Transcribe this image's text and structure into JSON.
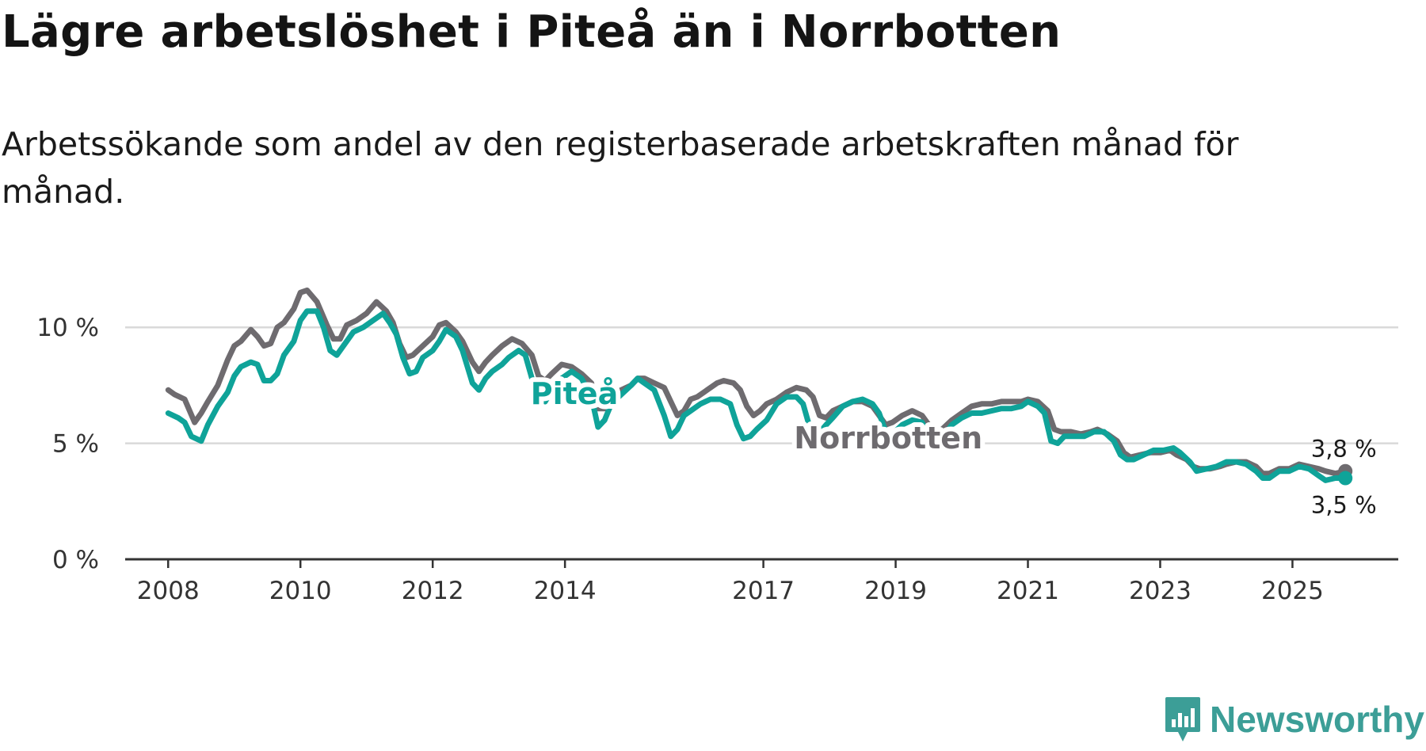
{
  "title": "Lägre arbetslöshet i Piteå än i Norrbotten",
  "subtitle": "Arbetssökande som andel av den registerbaserade arbetskraften månad för månad.",
  "brand": {
    "name": "Newsworthy",
    "icon": "newsworthy-logo-icon"
  },
  "colors": {
    "pitea": "#0fa399",
    "norrbotten": "#6e6b6f",
    "grid": "#d9d9d9",
    "axis": "#333333",
    "brand": "#3c9e97"
  },
  "chart_data": {
    "type": "line",
    "title": "Lägre arbetslöshet i Piteå än i Norrbotten",
    "xlabel": "",
    "ylabel": "",
    "x_ticks": [
      2008,
      2010,
      2012,
      2014,
      2017,
      2019,
      2021,
      2023,
      2025
    ],
    "x_tick_labels": [
      "2008",
      "2010",
      "2012",
      "2014",
      "2017",
      "2019",
      "2021",
      "2023",
      "2025"
    ],
    "y_ticks": [
      0,
      5,
      10
    ],
    "y_tick_labels": [
      "0 %",
      "5 %",
      "10 %"
    ],
    "xlim": [
      2007.35,
      2026.6
    ],
    "ylim": [
      0,
      12.5
    ],
    "grid": true,
    "series": [
      {
        "name": "Norrbotten",
        "label": "Norrbotten",
        "color": "#6e6b6f",
        "end_label": "3,8 %",
        "points": [
          [
            2008.0,
            7.3
          ],
          [
            2008.1,
            7.1
          ],
          [
            2008.25,
            6.9
          ],
          [
            2008.4,
            5.9
          ],
          [
            2008.5,
            6.3
          ],
          [
            2008.6,
            6.8
          ],
          [
            2008.75,
            7.5
          ],
          [
            2008.9,
            8.6
          ],
          [
            2009.0,
            9.2
          ],
          [
            2009.1,
            9.4
          ],
          [
            2009.25,
            9.9
          ],
          [
            2009.35,
            9.6
          ],
          [
            2009.45,
            9.2
          ],
          [
            2009.55,
            9.3
          ],
          [
            2009.65,
            10.0
          ],
          [
            2009.75,
            10.2
          ],
          [
            2009.9,
            10.8
          ],
          [
            2010.0,
            11.5
          ],
          [
            2010.1,
            11.6
          ],
          [
            2010.25,
            11.1
          ],
          [
            2010.4,
            10.1
          ],
          [
            2010.5,
            9.5
          ],
          [
            2010.6,
            9.5
          ],
          [
            2010.7,
            10.1
          ],
          [
            2010.85,
            10.3
          ],
          [
            2011.0,
            10.6
          ],
          [
            2011.15,
            11.1
          ],
          [
            2011.3,
            10.7
          ],
          [
            2011.4,
            10.2
          ],
          [
            2011.5,
            9.3
          ],
          [
            2011.6,
            8.7
          ],
          [
            2011.7,
            8.8
          ],
          [
            2011.85,
            9.2
          ],
          [
            2012.0,
            9.6
          ],
          [
            2012.1,
            10.1
          ],
          [
            2012.2,
            10.2
          ],
          [
            2012.35,
            9.8
          ],
          [
            2012.45,
            9.4
          ],
          [
            2012.6,
            8.5
          ],
          [
            2012.7,
            8.1
          ],
          [
            2012.8,
            8.5
          ],
          [
            2012.9,
            8.8
          ],
          [
            2013.05,
            9.2
          ],
          [
            2013.2,
            9.5
          ],
          [
            2013.35,
            9.3
          ],
          [
            2013.5,
            8.8
          ],
          [
            2013.6,
            7.9
          ],
          [
            2013.7,
            7.7
          ],
          [
            2013.8,
            8.0
          ],
          [
            2013.95,
            8.4
          ],
          [
            2014.1,
            8.3
          ],
          [
            2014.25,
            8.0
          ],
          [
            2014.4,
            7.6
          ],
          [
            2014.5,
            6.5
          ],
          [
            2014.6,
            6.5
          ],
          [
            2014.7,
            7.0
          ],
          [
            2014.85,
            7.3
          ],
          [
            2015.0,
            7.5
          ],
          [
            2015.1,
            7.8
          ],
          [
            2015.2,
            7.8
          ],
          [
            2015.35,
            7.6
          ],
          [
            2015.5,
            7.4
          ],
          [
            2015.6,
            6.8
          ],
          [
            2015.7,
            6.2
          ],
          [
            2015.8,
            6.4
          ],
          [
            2015.9,
            6.9
          ],
          [
            2016.0,
            7.0
          ],
          [
            2016.15,
            7.3
          ],
          [
            2016.3,
            7.6
          ],
          [
            2016.4,
            7.7
          ],
          [
            2016.55,
            7.6
          ],
          [
            2016.65,
            7.3
          ],
          [
            2016.75,
            6.6
          ],
          [
            2016.85,
            6.2
          ],
          [
            2016.95,
            6.4
          ],
          [
            2017.05,
            6.7
          ],
          [
            2017.2,
            6.9
          ],
          [
            2017.35,
            7.2
          ],
          [
            2017.5,
            7.4
          ],
          [
            2017.65,
            7.3
          ],
          [
            2017.75,
            7.0
          ],
          [
            2017.85,
            6.2
          ],
          [
            2017.95,
            6.1
          ],
          [
            2018.05,
            6.4
          ],
          [
            2018.2,
            6.6
          ],
          [
            2018.35,
            6.8
          ],
          [
            2018.5,
            6.8
          ],
          [
            2018.65,
            6.6
          ],
          [
            2018.75,
            6.2
          ],
          [
            2018.85,
            5.8
          ],
          [
            2018.95,
            5.9
          ],
          [
            2019.1,
            6.2
          ],
          [
            2019.25,
            6.4
          ],
          [
            2019.4,
            6.2
          ],
          [
            2019.5,
            5.8
          ],
          [
            2019.6,
            5.5
          ],
          [
            2019.7,
            5.6
          ],
          [
            2019.85,
            6.0
          ],
          [
            2020.0,
            6.3
          ],
          [
            2020.15,
            6.6
          ],
          [
            2020.3,
            6.7
          ],
          [
            2020.45,
            6.7
          ],
          [
            2020.6,
            6.8
          ],
          [
            2020.75,
            6.8
          ],
          [
            2020.9,
            6.8
          ],
          [
            2021.0,
            6.9
          ],
          [
            2021.15,
            6.8
          ],
          [
            2021.3,
            6.4
          ],
          [
            2021.4,
            5.6
          ],
          [
            2021.5,
            5.5
          ],
          [
            2021.65,
            5.5
          ],
          [
            2021.8,
            5.4
          ],
          [
            2021.95,
            5.5
          ],
          [
            2022.05,
            5.6
          ],
          [
            2022.2,
            5.4
          ],
          [
            2022.35,
            5.1
          ],
          [
            2022.45,
            4.6
          ],
          [
            2022.55,
            4.4
          ],
          [
            2022.7,
            4.5
          ],
          [
            2022.85,
            4.6
          ],
          [
            2023.0,
            4.6
          ],
          [
            2023.15,
            4.7
          ],
          [
            2023.25,
            4.5
          ],
          [
            2023.4,
            4.3
          ],
          [
            2023.5,
            4.0
          ],
          [
            2023.6,
            3.9
          ],
          [
            2023.75,
            3.9
          ],
          [
            2023.9,
            4.0
          ],
          [
            2024.0,
            4.1
          ],
          [
            2024.15,
            4.2
          ],
          [
            2024.3,
            4.2
          ],
          [
            2024.45,
            4.0
          ],
          [
            2024.55,
            3.7
          ],
          [
            2024.65,
            3.7
          ],
          [
            2024.8,
            3.9
          ],
          [
            2024.95,
            3.9
          ],
          [
            2025.1,
            4.1
          ],
          [
            2025.25,
            4.0
          ],
          [
            2025.4,
            3.9
          ],
          [
            2025.5,
            3.8
          ],
          [
            2025.65,
            3.7
          ],
          [
            2025.8,
            3.8
          ]
        ]
      },
      {
        "name": "Piteå",
        "label": "Piteå",
        "color": "#0fa399",
        "end_label": "3,5 %",
        "points": [
          [
            2008.0,
            6.3
          ],
          [
            2008.15,
            6.1
          ],
          [
            2008.25,
            5.9
          ],
          [
            2008.35,
            5.3
          ],
          [
            2008.5,
            5.1
          ],
          [
            2008.6,
            5.8
          ],
          [
            2008.75,
            6.6
          ],
          [
            2008.9,
            7.2
          ],
          [
            2009.0,
            7.9
          ],
          [
            2009.1,
            8.3
          ],
          [
            2009.25,
            8.5
          ],
          [
            2009.35,
            8.4
          ],
          [
            2009.45,
            7.7
          ],
          [
            2009.55,
            7.7
          ],
          [
            2009.65,
            8.0
          ],
          [
            2009.75,
            8.8
          ],
          [
            2009.9,
            9.4
          ],
          [
            2010.0,
            10.3
          ],
          [
            2010.1,
            10.7
          ],
          [
            2010.25,
            10.7
          ],
          [
            2010.35,
            10.0
          ],
          [
            2010.45,
            9.0
          ],
          [
            2010.55,
            8.8
          ],
          [
            2010.65,
            9.2
          ],
          [
            2010.8,
            9.8
          ],
          [
            2010.95,
            10.0
          ],
          [
            2011.1,
            10.3
          ],
          [
            2011.25,
            10.6
          ],
          [
            2011.35,
            10.2
          ],
          [
            2011.45,
            9.7
          ],
          [
            2011.55,
            8.7
          ],
          [
            2011.65,
            8.0
          ],
          [
            2011.75,
            8.1
          ],
          [
            2011.85,
            8.7
          ],
          [
            2012.0,
            9.0
          ],
          [
            2012.1,
            9.4
          ],
          [
            2012.2,
            9.9
          ],
          [
            2012.35,
            9.6
          ],
          [
            2012.45,
            9.0
          ],
          [
            2012.6,
            7.6
          ],
          [
            2012.7,
            7.3
          ],
          [
            2012.8,
            7.8
          ],
          [
            2012.9,
            8.1
          ],
          [
            2013.05,
            8.4
          ],
          [
            2013.15,
            8.7
          ],
          [
            2013.3,
            9.0
          ],
          [
            2013.4,
            8.8
          ],
          [
            2013.5,
            7.8
          ],
          [
            2013.6,
            6.9
          ],
          [
            2013.7,
            6.8
          ],
          [
            2013.85,
            7.5
          ],
          [
            2013.95,
            7.8
          ],
          [
            2014.1,
            8.1
          ],
          [
            2014.25,
            7.8
          ],
          [
            2014.4,
            7.0
          ],
          [
            2014.5,
            5.7
          ],
          [
            2014.6,
            6.0
          ],
          [
            2014.7,
            6.7
          ],
          [
            2014.85,
            7.1
          ],
          [
            2015.0,
            7.5
          ],
          [
            2015.1,
            7.8
          ],
          [
            2015.2,
            7.6
          ],
          [
            2015.35,
            7.3
          ],
          [
            2015.5,
            6.2
          ],
          [
            2015.6,
            5.3
          ],
          [
            2015.7,
            5.6
          ],
          [
            2015.8,
            6.2
          ],
          [
            2015.9,
            6.4
          ],
          [
            2016.05,
            6.7
          ],
          [
            2016.2,
            6.9
          ],
          [
            2016.35,
            6.9
          ],
          [
            2016.5,
            6.7
          ],
          [
            2016.6,
            5.8
          ],
          [
            2016.7,
            5.2
          ],
          [
            2016.8,
            5.3
          ],
          [
            2016.9,
            5.6
          ],
          [
            2017.05,
            6.0
          ],
          [
            2017.2,
            6.7
          ],
          [
            2017.35,
            7.0
          ],
          [
            2017.5,
            7.0
          ],
          [
            2017.6,
            6.7
          ],
          [
            2017.7,
            5.7
          ],
          [
            2017.8,
            5.3
          ],
          [
            2017.95,
            5.8
          ],
          [
            2018.05,
            6.1
          ],
          [
            2018.2,
            6.6
          ],
          [
            2018.35,
            6.8
          ],
          [
            2018.5,
            6.9
          ],
          [
            2018.65,
            6.7
          ],
          [
            2018.75,
            6.3
          ],
          [
            2018.85,
            5.5
          ],
          [
            2018.95,
            5.4
          ],
          [
            2019.1,
            5.8
          ],
          [
            2019.25,
            6.0
          ],
          [
            2019.4,
            5.9
          ],
          [
            2019.5,
            5.3
          ],
          [
            2019.6,
            5.1
          ],
          [
            2019.7,
            5.2
          ],
          [
            2019.85,
            5.8
          ],
          [
            2020.0,
            6.1
          ],
          [
            2020.15,
            6.3
          ],
          [
            2020.3,
            6.3
          ],
          [
            2020.45,
            6.4
          ],
          [
            2020.6,
            6.5
          ],
          [
            2020.75,
            6.5
          ],
          [
            2020.9,
            6.6
          ],
          [
            2021.0,
            6.8
          ],
          [
            2021.15,
            6.6
          ],
          [
            2021.25,
            6.3
          ],
          [
            2021.35,
            5.1
          ],
          [
            2021.45,
            5.0
          ],
          [
            2021.55,
            5.3
          ],
          [
            2021.7,
            5.3
          ],
          [
            2021.85,
            5.3
          ],
          [
            2022.0,
            5.5
          ],
          [
            2022.15,
            5.5
          ],
          [
            2022.3,
            5.1
          ],
          [
            2022.4,
            4.5
          ],
          [
            2022.5,
            4.3
          ],
          [
            2022.6,
            4.3
          ],
          [
            2022.75,
            4.5
          ],
          [
            2022.9,
            4.7
          ],
          [
            2023.05,
            4.7
          ],
          [
            2023.2,
            4.8
          ],
          [
            2023.3,
            4.6
          ],
          [
            2023.45,
            4.2
          ],
          [
            2023.55,
            3.8
          ],
          [
            2023.7,
            3.9
          ],
          [
            2023.85,
            4.0
          ],
          [
            2024.0,
            4.2
          ],
          [
            2024.15,
            4.2
          ],
          [
            2024.3,
            4.1
          ],
          [
            2024.45,
            3.8
          ],
          [
            2024.55,
            3.5
          ],
          [
            2024.65,
            3.5
          ],
          [
            2024.8,
            3.8
          ],
          [
            2024.95,
            3.8
          ],
          [
            2025.1,
            4.0
          ],
          [
            2025.25,
            3.9
          ],
          [
            2025.4,
            3.6
          ],
          [
            2025.5,
            3.4
          ],
          [
            2025.65,
            3.5
          ],
          [
            2025.8,
            3.5
          ]
        ]
      }
    ],
    "annotations": [
      {
        "text": "Piteå",
        "series": "Piteå",
        "at_x": 2013.6
      },
      {
        "text": "Norrbotten",
        "series": "Norrbotten",
        "at_x": 2019.5
      }
    ]
  }
}
